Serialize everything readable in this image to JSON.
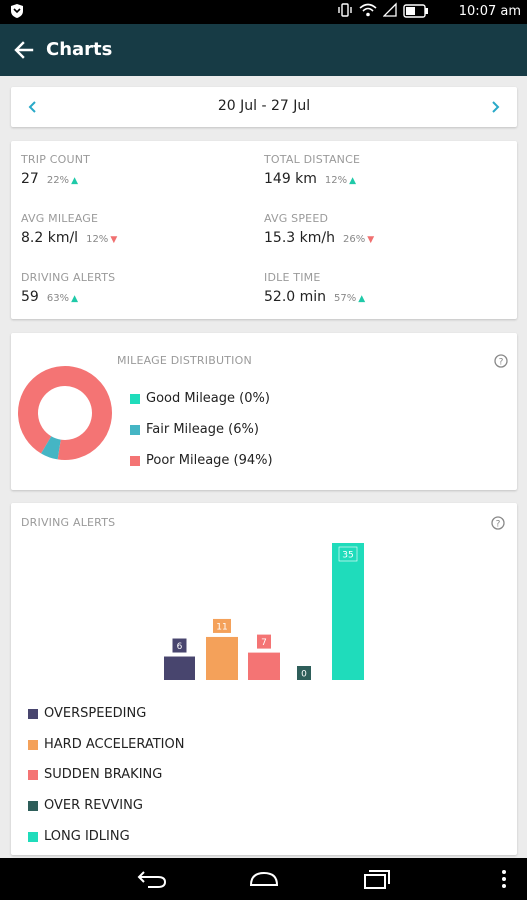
{
  "status_bar": {
    "time": "10:07 am"
  },
  "app_bar": {
    "title": "Charts"
  },
  "date_nav": {
    "range": "20 Jul - 27 Jul"
  },
  "stats": [
    {
      "label": "TRIP COUNT",
      "value": "27",
      "pct": "22%",
      "trend": "up"
    },
    {
      "label": "TOTAL DISTANCE",
      "value": "149 km",
      "pct": "12%",
      "trend": "up"
    },
    {
      "label": "AVG MILEAGE",
      "value": "8.2 km/l",
      "pct": "12%",
      "trend": "down"
    },
    {
      "label": "AVG SPEED",
      "value": "15.3 km/h",
      "pct": "26%",
      "trend": "down"
    },
    {
      "label": "DRIVING ALERTS",
      "value": "59",
      "pct": "63%",
      "trend": "up"
    },
    {
      "label": "IDLE TIME",
      "value": "52.0 min",
      "pct": "57%",
      "trend": "up"
    }
  ],
  "mileage": {
    "title": "MILEAGE DISTRIBUTION",
    "legend": [
      {
        "label": "Good Mileage (0%)",
        "color": "#1fdcbb"
      },
      {
        "label": "Fair Mileage (6%)",
        "color": "#45b5c4"
      },
      {
        "label": "Poor Mileage (94%)",
        "color": "#f47474"
      }
    ]
  },
  "alerts": {
    "title": "DRIVING ALERTS",
    "legend": [
      {
        "label": "OVERSPEEDING",
        "color": "#48456e"
      },
      {
        "label": "HARD ACCELERATION",
        "color": "#f4a15a"
      },
      {
        "label": "SUDDEN BRAKING",
        "color": "#f47474"
      },
      {
        "label": "OVER REVVING",
        "color": "#2e5e5a"
      },
      {
        "label": "LONG IDLING",
        "color": "#1fdcbb"
      }
    ]
  },
  "chart_data": [
    {
      "type": "pie",
      "title": "MILEAGE DISTRIBUTION",
      "categories": [
        "Good Mileage",
        "Fair Mileage",
        "Poor Mileage"
      ],
      "values": [
        0,
        6,
        94
      ],
      "colors": [
        "#1fdcbb",
        "#45b5c4",
        "#f47474"
      ],
      "legend": "right"
    },
    {
      "type": "bar",
      "title": "DRIVING ALERTS",
      "categories": [
        "OVERSPEEDING",
        "HARD ACCELERATION",
        "SUDDEN BRAKING",
        "OVER REVVING",
        "LONG IDLING"
      ],
      "values": [
        6,
        11,
        7,
        0,
        35
      ],
      "colors": [
        "#48456e",
        "#f4a15a",
        "#f47474",
        "#2e5e5a",
        "#1fdcbb"
      ],
      "data_labels": true,
      "grid": false,
      "legend": "bottom"
    }
  ]
}
